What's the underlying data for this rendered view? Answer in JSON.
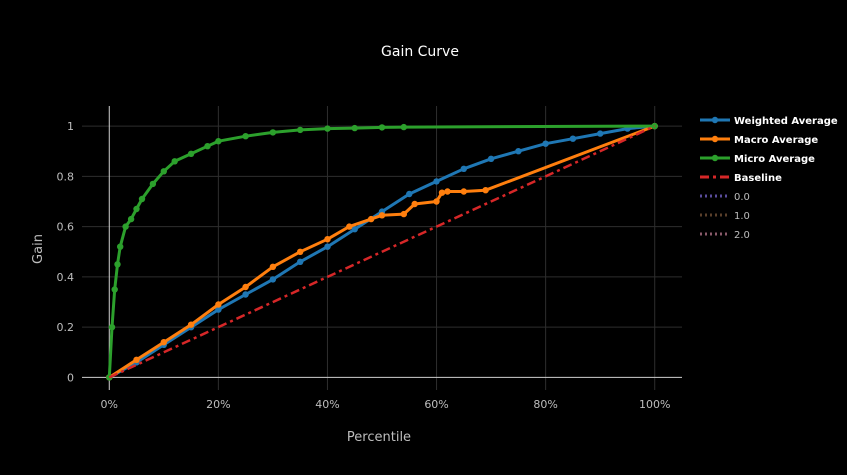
{
  "chart_data": {
    "type": "line",
    "title": "Gain Curve",
    "xlabel": "Percentile",
    "ylabel": "Gain",
    "xlim": [
      -5,
      105
    ],
    "ylim": [
      -0.05,
      1.08
    ],
    "grid": true,
    "legend_placement": "right",
    "x_ticks": [
      {
        "value": 0,
        "label": "0%"
      },
      {
        "value": 20,
        "label": "20%"
      },
      {
        "value": 40,
        "label": "40%"
      },
      {
        "value": 60,
        "label": "60%"
      },
      {
        "value": 80,
        "label": "80%"
      },
      {
        "value": 100,
        "label": "100%"
      }
    ],
    "y_ticks": [
      {
        "value": 0,
        "label": "0"
      },
      {
        "value": 0.2,
        "label": "0.2"
      },
      {
        "value": 0.4,
        "label": "0.4"
      },
      {
        "value": 0.6,
        "label": "0.6"
      },
      {
        "value": 0.8,
        "label": "0.8"
      },
      {
        "value": 1,
        "label": "1"
      }
    ],
    "series": [
      {
        "name": "Weighted Average",
        "color": "#1f77b4",
        "style": "line+markers",
        "x": [
          0,
          5,
          10,
          15,
          20,
          25,
          30,
          35,
          40,
          45,
          50,
          55,
          60,
          65,
          70,
          75,
          80,
          85,
          90,
          95,
          100
        ],
        "y": [
          0,
          0.06,
          0.13,
          0.2,
          0.27,
          0.33,
          0.39,
          0.46,
          0.52,
          0.59,
          0.66,
          0.73,
          0.78,
          0.83,
          0.87,
          0.9,
          0.93,
          0.95,
          0.97,
          0.99,
          1.0
        ]
      },
      {
        "name": "Macro Average",
        "color": "#ff7f0e",
        "style": "line+markers",
        "x": [
          0,
          5,
          10,
          15,
          20,
          25,
          30,
          35,
          40,
          44,
          48,
          50,
          54,
          56,
          60,
          61,
          62,
          65,
          69,
          100
        ],
        "y": [
          0,
          0.07,
          0.14,
          0.21,
          0.29,
          0.36,
          0.44,
          0.5,
          0.55,
          0.6,
          0.63,
          0.645,
          0.65,
          0.69,
          0.7,
          0.735,
          0.74,
          0.74,
          0.745,
          1.0
        ]
      },
      {
        "name": "Micro Average",
        "color": "#2ca02c",
        "style": "line+markers",
        "x": [
          0,
          0.5,
          1,
          1.5,
          2,
          3,
          4,
          5,
          6,
          8,
          10,
          12,
          15,
          18,
          20,
          25,
          30,
          35,
          40,
          45,
          50,
          54,
          100
        ],
        "y": [
          0,
          0.2,
          0.35,
          0.45,
          0.52,
          0.6,
          0.63,
          0.67,
          0.71,
          0.77,
          0.82,
          0.86,
          0.89,
          0.92,
          0.94,
          0.96,
          0.975,
          0.985,
          0.99,
          0.992,
          0.995,
          0.996,
          1.0
        ]
      },
      {
        "name": "Baseline",
        "color": "#d62728",
        "style": "dashdot",
        "x": [
          0,
          100
        ],
        "y": [
          0,
          1
        ]
      },
      {
        "name": "0.0",
        "color": "#5a4d9c",
        "style": "dot",
        "x": [],
        "y": []
      },
      {
        "name": "1.0",
        "color": "#5a3f2a",
        "style": "dot",
        "x": [],
        "y": []
      },
      {
        "name": "2.0",
        "color": "#8a5a6a",
        "style": "dot",
        "x": [],
        "y": []
      }
    ]
  }
}
